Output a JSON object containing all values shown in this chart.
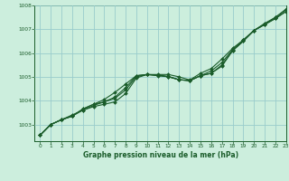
{
  "xlabel": "Graphe pression niveau de la mer (hPa)",
  "bg_color": "#cceedd",
  "grid_color": "#99cccc",
  "line_color": "#1a5c2a",
  "marker_color": "#1a5c2a",
  "xlim": [
    -0.5,
    23
  ],
  "ylim": [
    1002.3,
    1008.0
  ],
  "yticks": [
    1003,
    1004,
    1005,
    1006,
    1007,
    1008
  ],
  "xticks": [
    0,
    1,
    2,
    3,
    4,
    5,
    6,
    7,
    8,
    9,
    10,
    11,
    12,
    13,
    14,
    15,
    16,
    17,
    18,
    19,
    20,
    21,
    22,
    23
  ],
  "lines": [
    [
      1002.55,
      1003.0,
      1003.2,
      1003.35,
      1003.65,
      1003.85,
      1004.05,
      1004.35,
      1004.7,
      1005.05,
      1005.1,
      1005.1,
      1005.1,
      1005.0,
      1004.87,
      1005.15,
      1005.35,
      1005.75,
      1006.2,
      1006.55,
      1006.95,
      1007.2,
      1007.45,
      1007.75
    ],
    [
      1002.55,
      1003.0,
      1003.2,
      1003.35,
      1003.65,
      1003.85,
      1003.95,
      1004.15,
      1004.55,
      1005.05,
      1005.1,
      1005.05,
      1005.0,
      1004.88,
      1004.85,
      1005.05,
      1005.15,
      1005.5,
      1006.1,
      1006.5,
      1006.95,
      1007.2,
      1007.45,
      1007.75
    ],
    [
      1002.55,
      1003.0,
      1003.2,
      1003.35,
      1003.6,
      1003.75,
      1003.85,
      1003.95,
      1004.3,
      1004.95,
      1005.1,
      1005.08,
      1005.02,
      1004.88,
      1004.84,
      1005.05,
      1005.15,
      1005.45,
      1006.1,
      1006.5,
      1006.95,
      1007.2,
      1007.5,
      1007.82
    ],
    [
      1002.55,
      1003.0,
      1003.2,
      1003.4,
      1003.6,
      1003.8,
      1003.95,
      1004.1,
      1004.45,
      1005.0,
      1005.1,
      1005.06,
      1005.01,
      1004.88,
      1004.84,
      1005.05,
      1005.25,
      1005.6,
      1006.15,
      1006.55,
      1006.95,
      1007.25,
      1007.5,
      1007.85
    ]
  ]
}
